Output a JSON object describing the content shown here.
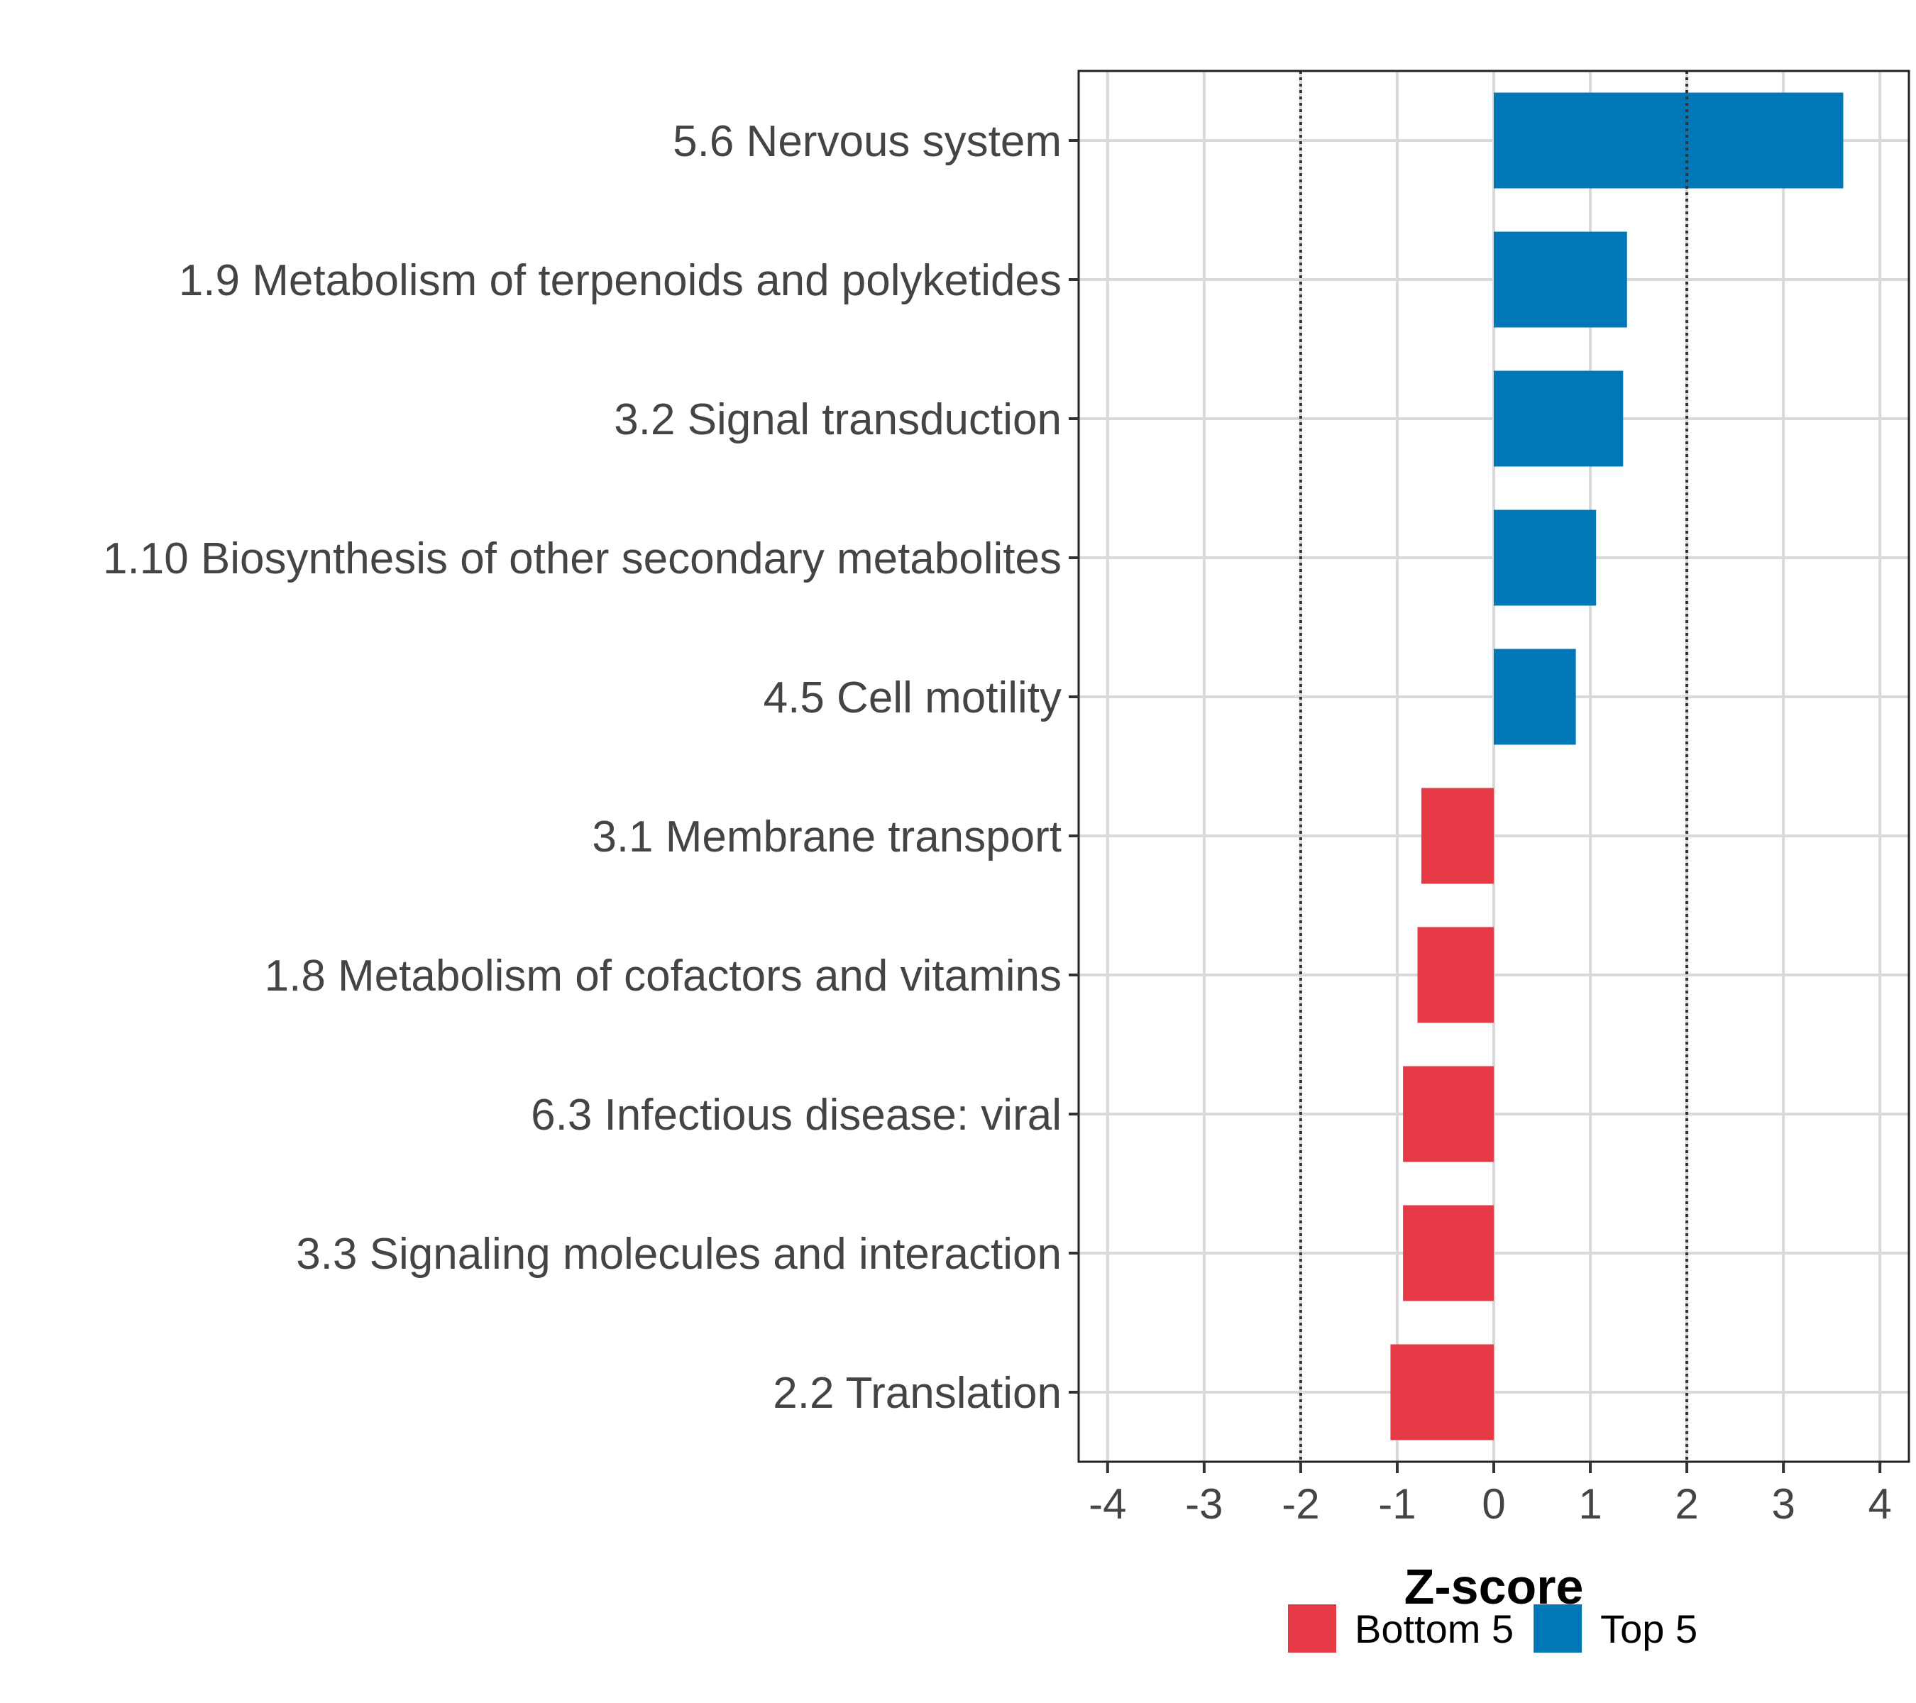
{
  "chart_data": {
    "type": "bar",
    "orientation": "horizontal",
    "categories": [
      "5.6 Nervous system",
      "1.9 Metabolism of terpenoids and polyketides",
      "3.2 Signal transduction",
      "1.10 Biosynthesis of other secondary metabolites",
      "4.5 Cell motility",
      "3.1 Membrane transport",
      "1.8 Metabolism of cofactors and vitamins",
      "6.3 Infectious disease: viral",
      "3.3 Signaling molecules and interaction",
      "2.2 Translation"
    ],
    "values": [
      3.62,
      1.38,
      1.34,
      1.06,
      0.85,
      -0.75,
      -0.79,
      -0.94,
      -0.94,
      -1.07
    ],
    "groups": [
      "Top 5",
      "Top 5",
      "Top 5",
      "Top 5",
      "Top 5",
      "Bottom 5",
      "Bottom 5",
      "Bottom 5",
      "Bottom 5",
      "Bottom 5"
    ],
    "xlabel": "Z-score",
    "ylabel": "",
    "xlim": [
      -4.3,
      4.3
    ],
    "xticks": [
      "-4",
      "-3",
      "-2",
      "-1",
      "0",
      "1",
      "2",
      "3",
      "4"
    ],
    "reference_lines": [
      -2,
      2
    ],
    "grid": true,
    "legend": {
      "position": "bottom",
      "entries": [
        {
          "label": "Bottom 5",
          "color": "#E63946"
        },
        {
          "label": "Top 5",
          "color": "#0077B6"
        }
      ]
    },
    "colors": {
      "Top 5": "#0077B6",
      "Bottom 5": "#E63946"
    }
  }
}
